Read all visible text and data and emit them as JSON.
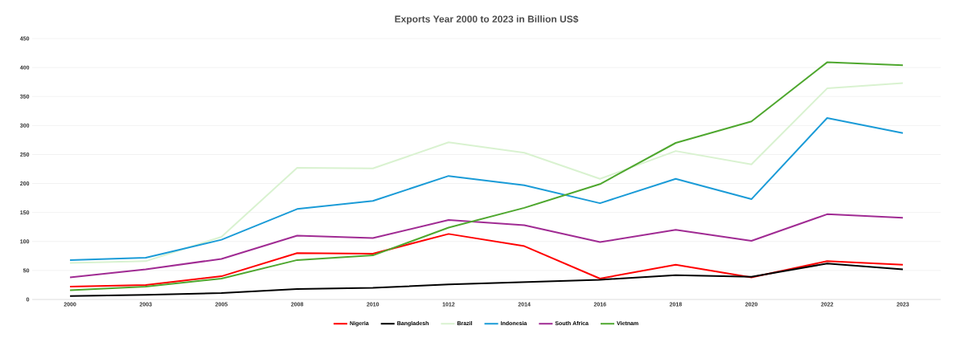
{
  "chart_data": {
    "type": "line",
    "title": "Exports  Year 2000 to 2023 in Billion US$",
    "categories": [
      "2000",
      "2003",
      "2005",
      "2008",
      "2010",
      "1012",
      "2014",
      "2016",
      "2018",
      "2020",
      "2022",
      "2023"
    ],
    "series": [
      {
        "name": "Nigeria",
        "color": "#ff0000",
        "values": [
          22,
          25,
          40,
          80,
          79,
          113,
          92,
          36,
          60,
          38,
          66,
          60
        ]
      },
      {
        "name": "Bangladesh",
        "color": "#000000",
        "values": [
          6,
          8,
          11,
          18,
          20,
          26,
          30,
          34,
          42,
          39,
          62,
          52
        ]
      },
      {
        "name": "Brazil",
        "color": "#d9f2d0",
        "values": [
          63,
          66,
          108,
          227,
          226,
          271,
          253,
          208,
          256,
          233,
          364,
          373
        ]
      },
      {
        "name": "Indonesia",
        "color": "#1a9bd7",
        "values": [
          68,
          72,
          103,
          156,
          170,
          213,
          197,
          166,
          208,
          173,
          313,
          287
        ]
      },
      {
        "name": "South Africa",
        "color": "#a02b93",
        "values": [
          38,
          52,
          70,
          110,
          106,
          137,
          128,
          99,
          120,
          101,
          147,
          141
        ]
      },
      {
        "name": "Vietnam",
        "color": "#4ea72e",
        "values": [
          16,
          22,
          36,
          68,
          76,
          124,
          158,
          199,
          270,
          307,
          409,
          404
        ]
      }
    ],
    "ylim": [
      0,
      450
    ],
    "yticks": [
      0,
      50,
      100,
      150,
      200,
      250,
      300,
      350,
      400,
      450
    ],
    "grid": "y",
    "legend": "bottom",
    "marker": "none",
    "line_style": "solid"
  }
}
